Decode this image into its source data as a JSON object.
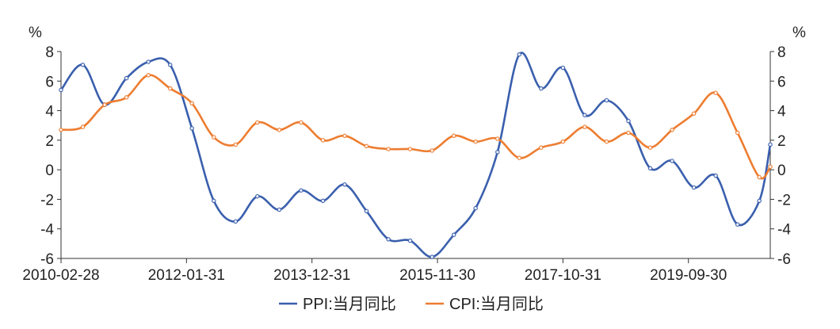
{
  "chart_data": {
    "type": "line",
    "title": "",
    "xlabel": "",
    "left_unit": "%",
    "right_unit": "%",
    "ylim": [
      -6,
      8
    ],
    "yticks": [
      8,
      6,
      4,
      2,
      0,
      -2,
      -4,
      -6
    ],
    "grid": false,
    "legend_position": "bottom",
    "x_tick_labels": [
      "2010-02-28",
      "2012-01-31",
      "2013-12-31",
      "2015-11-30",
      "2017-10-31",
      "2019-09-30"
    ],
    "x": [
      "2010-02",
      "2010-06",
      "2010-10",
      "2011-02",
      "2011-06",
      "2011-10",
      "2012-02",
      "2012-06",
      "2012-10",
      "2013-02",
      "2013-06",
      "2013-10",
      "2014-02",
      "2014-06",
      "2014-10",
      "2015-02",
      "2015-06",
      "2015-10",
      "2016-02",
      "2016-06",
      "2016-10",
      "2017-02",
      "2017-06",
      "2017-10",
      "2018-02",
      "2018-06",
      "2018-10",
      "2019-02",
      "2019-06",
      "2019-10",
      "2020-02",
      "2020-06",
      "2020-10",
      "2020-12"
    ],
    "series": [
      {
        "name": "PPI:当月同比",
        "color": "#3a5fad",
        "values": [
          5.4,
          7.1,
          4.4,
          6.2,
          7.3,
          7.1,
          2.8,
          -2.1,
          -3.5,
          -1.8,
          -2.7,
          -1.4,
          -2.1,
          -1.0,
          -2.8,
          -4.7,
          -4.8,
          -5.9,
          -4.4,
          -2.6,
          1.2,
          7.8,
          5.5,
          6.9,
          3.7,
          4.7,
          3.3,
          0.1,
          0.6,
          -1.2,
          -0.4,
          -3.7,
          -2.1,
          1.7
        ]
      },
      {
        "name": "CPI:当月同比",
        "color": "#ed7d31",
        "values": [
          2.7,
          2.9,
          4.4,
          4.9,
          6.4,
          5.5,
          4.5,
          2.2,
          1.7,
          3.2,
          2.7,
          3.2,
          2.0,
          2.3,
          1.6,
          1.4,
          1.4,
          1.3,
          2.3,
          1.9,
          2.1,
          0.8,
          1.5,
          1.9,
          2.9,
          1.9,
          2.5,
          1.5,
          2.7,
          3.8,
          5.2,
          2.5,
          -0.5,
          0.2
        ]
      }
    ]
  }
}
